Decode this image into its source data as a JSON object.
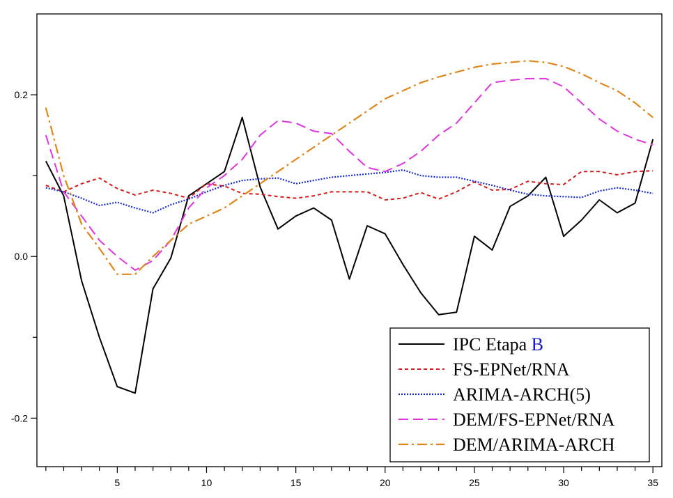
{
  "chart_data": {
    "type": "line",
    "xlim": [
      0.5,
      35.5
    ],
    "ylim": [
      -0.26,
      0.3
    ],
    "x_ticks": [
      5,
      10,
      15,
      20,
      25,
      30,
      35
    ],
    "y_ticks": [
      0.2,
      0.0,
      -0.2
    ],
    "x_tick_labels": [
      "5",
      "10",
      "15",
      "20",
      "25",
      "30",
      "35"
    ],
    "y_tick_labels": [
      "0.2",
      "0.0",
      "-0.2"
    ],
    "grid": false,
    "legend_position": "bottom-right",
    "x": [
      1,
      2,
      3,
      4,
      5,
      6,
      7,
      8,
      9,
      10,
      11,
      12,
      13,
      14,
      15,
      16,
      17,
      18,
      19,
      20,
      21,
      22,
      23,
      24,
      25,
      26,
      27,
      28,
      29,
      30,
      31,
      32,
      33,
      34,
      35
    ],
    "series": [
      {
        "name": "IPC Etapa",
        "name_suffix": "B",
        "suffix_color": "#1a1acc",
        "color": "#000000",
        "dash": "solid",
        "values": [
          0.118,
          0.075,
          -0.03,
          -0.1,
          -0.161,
          -0.169,
          -0.04,
          -0.002,
          0.075,
          0.09,
          0.105,
          0.172,
          0.086,
          0.034,
          0.05,
          0.06,
          0.045,
          -0.028,
          0.038,
          0.028,
          -0.01,
          -0.045,
          -0.072,
          -0.069,
          0.025,
          0.008,
          0.062,
          0.075,
          0.098,
          0.025,
          0.045,
          0.07,
          0.054,
          0.066,
          0.145
        ]
      },
      {
        "name": "FS-EPNet/RNA",
        "color": "#d41c1c",
        "dash": "dashed",
        "values": [
          0.088,
          0.08,
          0.09,
          0.097,
          0.084,
          0.076,
          0.082,
          0.078,
          0.072,
          0.09,
          0.087,
          0.078,
          0.077,
          0.074,
          0.072,
          0.075,
          0.08,
          0.08,
          0.08,
          0.07,
          0.072,
          0.079,
          0.071,
          0.08,
          0.092,
          0.082,
          0.083,
          0.093,
          0.09,
          0.089,
          0.105,
          0.105,
          0.101,
          0.105,
          0.106
        ]
      },
      {
        "name": "ARIMA-ARCH(5)",
        "color": "#1a2acc",
        "dash": "dotted",
        "values": [
          0.085,
          0.08,
          0.072,
          0.063,
          0.067,
          0.06,
          0.054,
          0.064,
          0.071,
          0.08,
          0.088,
          0.094,
          0.096,
          0.097,
          0.09,
          0.094,
          0.098,
          0.1,
          0.102,
          0.104,
          0.107,
          0.1,
          0.098,
          0.098,
          0.093,
          0.088,
          0.082,
          0.077,
          0.075,
          0.074,
          0.073,
          0.081,
          0.085,
          0.082,
          0.078
        ]
      },
      {
        "name": "DEM/FS-EPNet/RNA",
        "color": "#e034e0",
        "dash": "long-dash",
        "values": [
          0.15,
          0.08,
          0.05,
          0.02,
          0.0,
          -0.017,
          -0.005,
          0.02,
          0.06,
          0.085,
          0.1,
          0.12,
          0.15,
          0.168,
          0.165,
          0.155,
          0.152,
          0.13,
          0.11,
          0.105,
          0.115,
          0.13,
          0.15,
          0.165,
          0.19,
          0.215,
          0.218,
          0.22,
          0.22,
          0.21,
          0.19,
          0.17,
          0.155,
          0.145,
          0.138
        ]
      },
      {
        "name": "DEM/ARIMA-ARCH",
        "color": "#e0861a",
        "dash": "dash-dot",
        "values": [
          0.184,
          0.1,
          0.04,
          0.01,
          -0.022,
          -0.022,
          0.0,
          0.02,
          0.04,
          0.05,
          0.06,
          0.075,
          0.09,
          0.105,
          0.12,
          0.135,
          0.15,
          0.165,
          0.18,
          0.195,
          0.205,
          0.215,
          0.222,
          0.228,
          0.234,
          0.238,
          0.24,
          0.242,
          0.24,
          0.235,
          0.226,
          0.215,
          0.205,
          0.19,
          0.172
        ]
      }
    ]
  }
}
